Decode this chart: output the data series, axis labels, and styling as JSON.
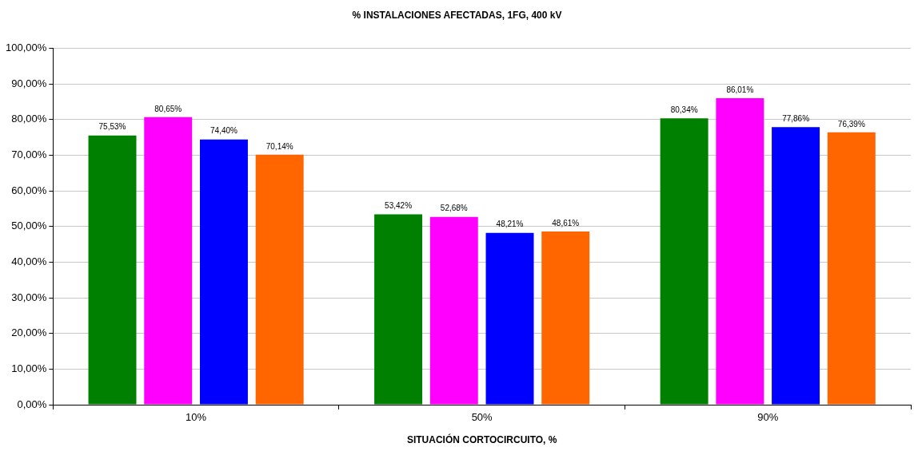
{
  "chart_data": {
    "type": "bar",
    "title": "% INSTALACIONES AFECTADAS, 1FG, 400 kV",
    "xlabel": "SITUACIÓN CORTOCIRCUITO, %",
    "categories": [
      "10%",
      "50%",
      "90%"
    ],
    "series": [
      {
        "color": "#008000",
        "values": [
          75.53,
          53.42,
          80.34
        ],
        "value_labels": [
          "75,53%",
          "53,42%",
          "80,34%"
        ]
      },
      {
        "color": "#ff00ff",
        "values": [
          80.65,
          52.68,
          86.01
        ],
        "value_labels": [
          "80,65%",
          "52,68%",
          "86,01%"
        ]
      },
      {
        "color": "#0000ff",
        "values": [
          74.4,
          48.21,
          77.86
        ],
        "value_labels": [
          "74,40%",
          "48,21%",
          "77,86%"
        ]
      },
      {
        "color": "#ff6600",
        "values": [
          70.14,
          48.61,
          76.39
        ],
        "value_labels": [
          "70,14%",
          "48,61%",
          "76,39%"
        ]
      }
    ],
    "ylim": [
      0,
      100
    ],
    "yticks": [
      {
        "value": 0,
        "label": "0,00%"
      },
      {
        "value": 10,
        "label": "10,00%"
      },
      {
        "value": 20,
        "label": "20,00%"
      },
      {
        "value": 30,
        "label": "30,00%"
      },
      {
        "value": 40,
        "label": "40,00%"
      },
      {
        "value": 50,
        "label": "50,00%"
      },
      {
        "value": 60,
        "label": "60,00%"
      },
      {
        "value": 70,
        "label": "70,00%"
      },
      {
        "value": 80,
        "label": "80,00%"
      },
      {
        "value": 90,
        "label": "90,00%"
      },
      {
        "value": 100,
        "label": "100,00%"
      }
    ],
    "grid": "y",
    "legend": false
  }
}
